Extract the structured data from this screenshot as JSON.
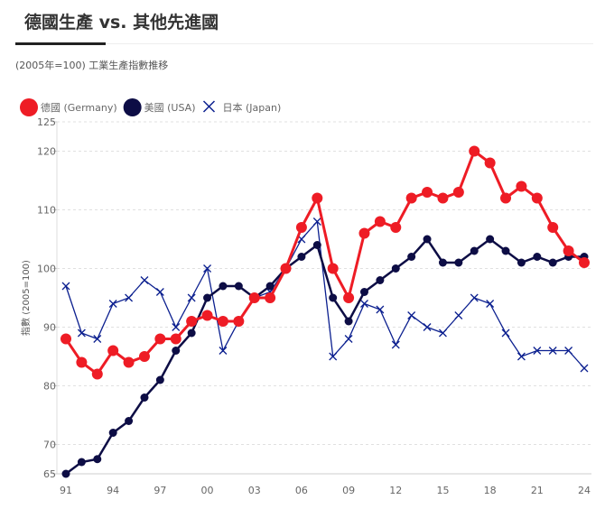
{
  "title": "德國生產 vs. 其他先進國",
  "subtitle": "(2005年=100) 工業生產指數推移",
  "chart_data": {
    "type": "line",
    "ylabel": "指數 (2005=100)",
    "xlabel": "",
    "ylim": [
      65,
      125
    ],
    "yticks": [
      65,
      70,
      80,
      90,
      100,
      110,
      120,
      125
    ],
    "xticks": [
      "91",
      "94",
      "97",
      "00",
      "03",
      "06",
      "09",
      "12",
      "15",
      "18",
      "21",
      "24"
    ],
    "x": [
      1991,
      1992,
      1993,
      1994,
      1995,
      1996,
      1997,
      1998,
      1999,
      2000,
      2001,
      2002,
      2003,
      2004,
      2005,
      2006,
      2007,
      2008,
      2009,
      2010,
      2011,
      2012,
      2013,
      2014,
      2015,
      2016,
      2017,
      2018,
      2019,
      2020,
      2021,
      2022,
      2023,
      2024
    ],
    "grid": true,
    "legend": "top-left",
    "series": [
      {
        "name": "德國 (Germany)",
        "color": "#ee1c25",
        "marker": "circle",
        "values": [
          88,
          84,
          82,
          86,
          84,
          85,
          88,
          88,
          91,
          92,
          91,
          91,
          95,
          95,
          100,
          107,
          112,
          100,
          95,
          106,
          108,
          107,
          112,
          113,
          112,
          113,
          120,
          118,
          112,
          114,
          112,
          107,
          103,
          101
        ]
      },
      {
        "name": "美國 (USA)",
        "color": "#0d0d45",
        "marker": "circle",
        "values": [
          65,
          67,
          67.5,
          72,
          74,
          78,
          81,
          86,
          89,
          95,
          97,
          97,
          95,
          97,
          100,
          102,
          104,
          95,
          91,
          96,
          98,
          100,
          102,
          105,
          101,
          101,
          103,
          105,
          103,
          101,
          102,
          101,
          102,
          102
        ]
      },
      {
        "name": "日本 (Japan)",
        "color": "#0b1f8f",
        "marker": "x",
        "values": [
          97,
          89,
          88,
          94,
          95,
          98,
          96,
          90,
          95,
          100,
          86,
          91,
          95,
          96,
          100,
          105,
          108,
          85,
          88,
          94,
          93,
          87,
          92,
          90,
          89,
          92,
          95,
          94,
          89,
          85,
          86,
          86,
          86,
          83
        ]
      }
    ]
  }
}
